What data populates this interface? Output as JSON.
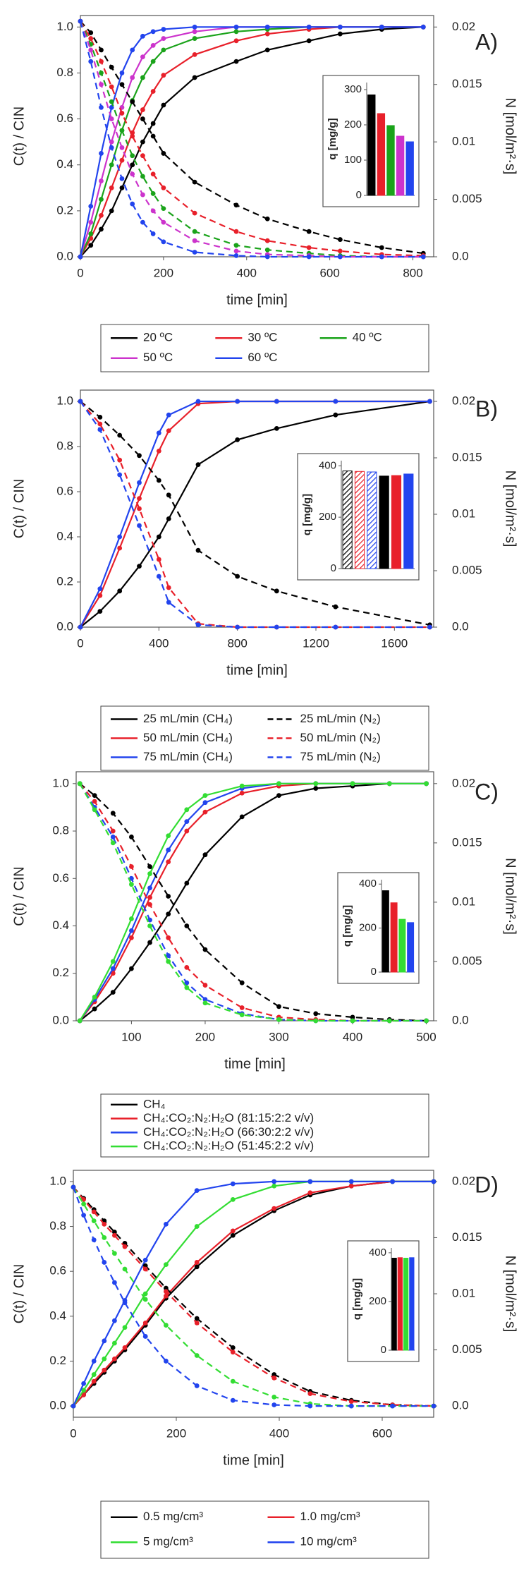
{
  "chart_data": [
    {
      "type": "line",
      "label": "A)",
      "xlabel": "time [min]",
      "ylabel": "C(t) / CIN",
      "y2label": "N [mol/m²·s]",
      "xlim": [
        0,
        850
      ],
      "xticks": [
        0,
        200,
        400,
        600,
        800
      ],
      "ylim": [
        0,
        1.05
      ],
      "yticks": [
        {
          "value": 0,
          "label": "0.0"
        },
        0.2,
        0.4,
        0.6,
        0.8,
        {
          "value": 1,
          "label": "1.0"
        }
      ],
      "y2lim": [
        0,
        0.021
      ],
      "y2ticks": [
        {
          "value": 0,
          "label": "0.0"
        },
        0.005,
        0.01,
        0.015,
        0.02
      ],
      "x": [
        0,
        25,
        50,
        75,
        100,
        125,
        150,
        175,
        200,
        275,
        375,
        450,
        550,
        625,
        725,
        825
      ],
      "series": [
        {
          "name": "20 ºC",
          "color": "#000000",
          "values": [
            0,
            0.05,
            0.12,
            0.2,
            0.3,
            0.4,
            0.5,
            0.58,
            0.66,
            0.78,
            0.85,
            0.9,
            0.94,
            0.97,
            0.99,
            1.0
          ]
        },
        {
          "name": "30 ºC",
          "color": "#e8202a",
          "values": [
            0,
            0.08,
            0.18,
            0.3,
            0.42,
            0.54,
            0.64,
            0.72,
            0.79,
            0.88,
            0.94,
            0.97,
            0.99,
            1,
            1,
            1
          ]
        },
        {
          "name": "40 ºC",
          "color": "#1aa31a",
          "values": [
            0,
            0.1,
            0.25,
            0.4,
            0.55,
            0.68,
            0.78,
            0.85,
            0.9,
            0.95,
            0.98,
            0.99,
            1,
            1,
            1,
            1
          ]
        },
        {
          "name": "50 ºC",
          "color": "#cc33cc",
          "values": [
            0,
            0.15,
            0.33,
            0.5,
            0.65,
            0.78,
            0.87,
            0.92,
            0.95,
            0.98,
            1,
            1,
            1,
            1,
            1,
            1
          ]
        },
        {
          "name": "60 ºC",
          "color": "#2244ee",
          "values": [
            0,
            0.22,
            0.45,
            0.65,
            0.8,
            0.9,
            0.96,
            0.98,
            0.99,
            1,
            1,
            1,
            1,
            1,
            1,
            1
          ]
        },
        {
          "color": "#000000",
          "dash": true,
          "axis": "y2",
          "values": [
            0.0205,
            0.0195,
            0.018,
            0.0165,
            0.015,
            0.0135,
            0.012,
            0.0105,
            0.009,
            0.0065,
            0.0045,
            0.0033,
            0.0022,
            0.0015,
            0.0008,
            0.0003
          ]
        },
        {
          "color": "#e8202a",
          "dash": true,
          "axis": "y2",
          "values": [
            0.0205,
            0.019,
            0.017,
            0.0148,
            0.0125,
            0.0105,
            0.0088,
            0.0072,
            0.006,
            0.0038,
            0.0022,
            0.0014,
            0.0008,
            0.0005,
            0.0002,
            0.0001
          ]
        },
        {
          "color": "#1aa31a",
          "dash": true,
          "axis": "y2",
          "values": [
            0.0205,
            0.0185,
            0.016,
            0.0135,
            0.011,
            0.0088,
            0.007,
            0.0055,
            0.0042,
            0.0022,
            0.001,
            0.0006,
            0.0003,
            0.0001,
            0,
            0
          ]
        },
        {
          "color": "#cc33cc",
          "dash": true,
          "axis": "y2",
          "values": [
            0.0205,
            0.018,
            0.015,
            0.012,
            0.0095,
            0.0072,
            0.0054,
            0.004,
            0.003,
            0.0014,
            0.0005,
            0.0002,
            0.0001,
            0,
            0,
            0
          ]
        },
        {
          "color": "#2244ee",
          "dash": true,
          "axis": "y2",
          "values": [
            0.0205,
            0.017,
            0.013,
            0.0095,
            0.0068,
            0.0046,
            0.003,
            0.002,
            0.0013,
            0.0004,
            0.0001,
            0,
            0,
            0,
            0,
            0
          ]
        }
      ]
    },
    {
      "type": "bar",
      "ylabel": "q [mg/g]",
      "ylim": [
        0,
        320
      ],
      "yticks": [
        0,
        100,
        200,
        300
      ],
      "values": [
        285,
        232,
        198,
        168,
        152
      ],
      "colors": [
        "#000000",
        "#e8202a",
        "#1aa31a",
        "#cc33cc",
        "#2244ee"
      ]
    },
    {
      "type": "line",
      "label": "B)",
      "xlabel": "time [min]",
      "ylabel": "C(t) / CIN",
      "y2label": "N [mol/m²·s]",
      "xlim": [
        0,
        1800
      ],
      "xticks": [
        0,
        400,
        800,
        1200,
        1600
      ],
      "ylim": [
        0,
        1.05
      ],
      "yticks": [
        {
          "value": 0,
          "label": "0.0"
        },
        0.2,
        0.4,
        0.6,
        0.8,
        {
          "value": 1,
          "label": "1.0"
        }
      ],
      "y2lim": [
        0,
        0.021
      ],
      "y2ticks": [
        {
          "value": 0,
          "label": "0.0"
        },
        0.005,
        0.01,
        0.015,
        0.02
      ],
      "x": [
        0,
        100,
        200,
        300,
        400,
        450,
        600,
        800,
        1000,
        1300,
        1780
      ],
      "series": [
        {
          "name": "25 mL/min (CH₄)",
          "color": "#000000",
          "values": [
            0,
            0.07,
            0.16,
            0.27,
            0.4,
            0.48,
            0.72,
            0.83,
            0.88,
            0.94,
            1.0
          ]
        },
        {
          "name": "50 mL/min (CH₄)",
          "color": "#e8202a",
          "values": [
            0,
            0.14,
            0.35,
            0.57,
            0.78,
            0.87,
            0.99,
            1,
            1,
            1,
            1
          ]
        },
        {
          "name": "75 mL/min (CH₄)",
          "color": "#2244ee",
          "values": [
            0,
            0.17,
            0.4,
            0.64,
            0.86,
            0.94,
            1,
            1,
            1,
            1,
            1
          ]
        },
        {
          "name": "25 mL/min (N₂)",
          "color": "#000000",
          "dash": true,
          "axis": "y2",
          "values": [
            0.02,
            0.0186,
            0.017,
            0.0152,
            0.013,
            0.0117,
            0.0068,
            0.0045,
            0.0032,
            0.0018,
            0.0002
          ]
        },
        {
          "name": "50 mL/min (N₂)",
          "color": "#e8202a",
          "dash": true,
          "axis": "y2",
          "values": [
            0.02,
            0.018,
            0.0148,
            0.0105,
            0.006,
            0.0035,
            0.0003,
            0,
            0,
            0,
            0
          ]
        },
        {
          "name": "75 mL/min (N₂)",
          "color": "#2244ee",
          "dash": true,
          "axis": "y2",
          "values": [
            0.02,
            0.0175,
            0.0135,
            0.009,
            0.0045,
            0.0022,
            0.0002,
            0,
            0,
            0,
            0
          ]
        }
      ]
    },
    {
      "type": "bar",
      "ylabel": "q [mg/g]",
      "ylim": [
        0,
        420
      ],
      "yticks": [
        0,
        200,
        400
      ],
      "values": [
        380,
        378,
        376,
        360,
        362,
        368
      ],
      "colors": [
        "#000000",
        "#e8202a",
        "#2244ee",
        "#000000",
        "#e8202a",
        "#2244ee"
      ],
      "hatch": [
        true,
        true,
        true,
        false,
        false,
        false
      ]
    },
    {
      "type": "line",
      "label": "C)",
      "xlabel": "time [min]",
      "ylabel": "C(t) / CIN",
      "y2label": "N [mol/m²·s]",
      "xlim": [
        25,
        510
      ],
      "xticks": [
        100,
        200,
        300,
        400,
        500
      ],
      "ylim": [
        0,
        1.05
      ],
      "yticks": [
        {
          "value": 0,
          "label": "0.0"
        },
        0.2,
        0.4,
        0.6,
        0.8,
        {
          "value": 1,
          "label": "1.0"
        }
      ],
      "y2lim": [
        0,
        0.021
      ],
      "y2ticks": [
        {
          "value": 0,
          "label": "0.0"
        },
        0.005,
        0.01,
        0.015,
        0.02
      ],
      "x": [
        30,
        50,
        75,
        100,
        125,
        150,
        175,
        200,
        250,
        300,
        350,
        400,
        450,
        500
      ],
      "series": [
        {
          "name": "CH₄",
          "color": "#000000",
          "values": [
            0,
            0.05,
            0.12,
            0.22,
            0.33,
            0.45,
            0.58,
            0.7,
            0.86,
            0.95,
            0.98,
            0.99,
            1,
            1
          ]
        },
        {
          "name": "CH₄:CO₂:N₂:H₂O (81:15:2:2  v/v)",
          "color": "#e8202a",
          "values": [
            0,
            0.08,
            0.2,
            0.35,
            0.52,
            0.67,
            0.8,
            0.88,
            0.96,
            0.99,
            1,
            1,
            1,
            1
          ]
        },
        {
          "name": "CH₄:CO₂:N₂:H₂O (66:30:2:2  v/v)",
          "color": "#2244ee",
          "values": [
            0,
            0.09,
            0.22,
            0.38,
            0.56,
            0.72,
            0.84,
            0.92,
            0.98,
            1,
            1,
            1,
            1,
            1
          ]
        },
        {
          "name": "CH₄:CO₂:N₂:H₂O (51:45:2:2  v/v)",
          "color": "#33dd33",
          "values": [
            0,
            0.1,
            0.25,
            0.43,
            0.62,
            0.78,
            0.89,
            0.95,
            0.99,
            1,
            1,
            1,
            1,
            1
          ]
        },
        {
          "color": "#000000",
          "dash": true,
          "axis": "y2",
          "values": [
            0.02,
            0.019,
            0.0175,
            0.0155,
            0.013,
            0.0105,
            0.008,
            0.006,
            0.0032,
            0.0012,
            0.0006,
            0.0003,
            0.0001,
            0
          ]
        },
        {
          "color": "#e8202a",
          "dash": true,
          "axis": "y2",
          "values": [
            0.02,
            0.0185,
            0.016,
            0.013,
            0.0098,
            0.007,
            0.0045,
            0.003,
            0.0011,
            0.0003,
            0.0001,
            0,
            0,
            0
          ]
        },
        {
          "color": "#2244ee",
          "dash": true,
          "axis": "y2",
          "values": [
            0.02,
            0.018,
            0.0155,
            0.012,
            0.0085,
            0.0055,
            0.0032,
            0.0018,
            0.0006,
            0.0001,
            0,
            0,
            0,
            0
          ]
        },
        {
          "color": "#33dd33",
          "dash": true,
          "axis": "y2",
          "values": [
            0.02,
            0.0178,
            0.015,
            0.0115,
            0.008,
            0.005,
            0.0028,
            0.0015,
            0.0005,
            0.0001,
            0,
            0,
            0,
            0
          ]
        }
      ]
    },
    {
      "type": "bar",
      "ylabel": "q [mg/g]",
      "ylim": [
        0,
        420
      ],
      "yticks": [
        0,
        200,
        400
      ],
      "values": [
        370,
        315,
        240,
        225
      ],
      "colors": [
        "#000000",
        "#e8202a",
        "#33dd33",
        "#2244ee"
      ]
    },
    {
      "type": "line",
      "label": "D)",
      "xlabel": "time [min]",
      "ylabel": "C(t) / CIN",
      "y2label": "N [mol/m²·s]",
      "xlim": [
        0,
        700
      ],
      "xticks": [
        0,
        200,
        400,
        600
      ],
      "ylim": [
        -0.05,
        1.05
      ],
      "yticks": [
        {
          "value": 0,
          "label": "0.0"
        },
        0.2,
        0.4,
        0.6,
        0.8,
        {
          "value": 1,
          "label": "1.0"
        }
      ],
      "y2lim": [
        -0.001,
        0.021
      ],
      "y2ticks": [
        {
          "value": 0,
          "label": "0.0"
        },
        0.005,
        0.01,
        0.015,
        0.02
      ],
      "x": [
        0,
        20,
        40,
        60,
        80,
        100,
        140,
        180,
        240,
        310,
        390,
        460,
        540,
        620,
        700
      ],
      "series": [
        {
          "name": "0.5 mg/cm³",
          "color": "#000000",
          "values": [
            0,
            0.05,
            0.1,
            0.15,
            0.2,
            0.25,
            0.36,
            0.48,
            0.62,
            0.76,
            0.87,
            0.94,
            0.98,
            1,
            1
          ]
        },
        {
          "name": "1.0 mg/cm³",
          "color": "#e8202a",
          "values": [
            0,
            0.05,
            0.11,
            0.16,
            0.21,
            0.26,
            0.37,
            0.49,
            0.64,
            0.78,
            0.88,
            0.95,
            0.98,
            1,
            1
          ]
        },
        {
          "name": "5 mg/cm³",
          "color": "#33dd33",
          "values": [
            0,
            0.07,
            0.14,
            0.21,
            0.28,
            0.35,
            0.5,
            0.63,
            0.8,
            0.92,
            0.98,
            1,
            1,
            1,
            1
          ]
        },
        {
          "name": "10 mg/cm³",
          "color": "#2244ee",
          "values": [
            0,
            0.1,
            0.2,
            0.29,
            0.38,
            0.47,
            0.65,
            0.81,
            0.96,
            0.99,
            1,
            1,
            1,
            1,
            1
          ]
        },
        {
          "color": "#000000",
          "dash": true,
          "axis": "y2",
          "values": [
            0.0195,
            0.0185,
            0.0175,
            0.0165,
            0.0155,
            0.0145,
            0.0125,
            0.0105,
            0.0078,
            0.0052,
            0.0028,
            0.0013,
            0.0005,
            0.0001,
            0
          ]
        },
        {
          "color": "#e8202a",
          "dash": true,
          "axis": "y2",
          "values": [
            0.0195,
            0.0184,
            0.0173,
            0.0162,
            0.0152,
            0.0142,
            0.0122,
            0.0102,
            0.0074,
            0.0048,
            0.0025,
            0.0011,
            0.0004,
            0.0001,
            0
          ]
        },
        {
          "color": "#33dd33",
          "dash": true,
          "axis": "y2",
          "values": [
            0.0195,
            0.018,
            0.0165,
            0.015,
            0.0136,
            0.0122,
            0.0095,
            0.0072,
            0.0045,
            0.0022,
            0.0008,
            0.0002,
            0,
            0,
            0
          ]
        },
        {
          "color": "#2244ee",
          "dash": true,
          "axis": "y2",
          "values": [
            0.0195,
            0.017,
            0.0148,
            0.0128,
            0.011,
            0.0092,
            0.0062,
            0.004,
            0.0018,
            0.0005,
            0.0001,
            0,
            0,
            0,
            0
          ]
        }
      ]
    },
    {
      "type": "bar",
      "ylabel": "q [mg/g]",
      "ylim": [
        0,
        420
      ],
      "yticks": [
        0,
        200,
        400
      ],
      "values": [
        378,
        380,
        378,
        380
      ],
      "colors": [
        "#000000",
        "#e8202a",
        "#33dd33",
        "#2244ee"
      ]
    }
  ]
}
